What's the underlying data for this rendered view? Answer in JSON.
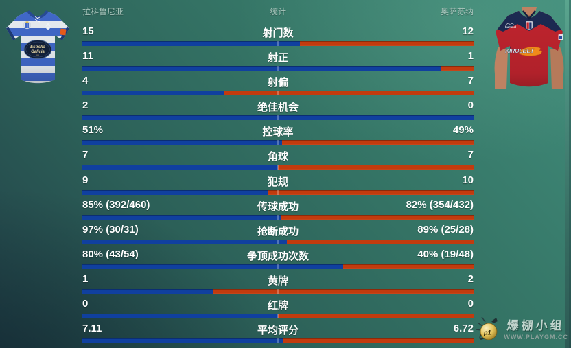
{
  "colors": {
    "home_bar": "#10409f",
    "away_bar": "#c23b0e",
    "home_kit_blue": "#4068c8",
    "away_kit_red": "#c0242e",
    "away_kit_navy": "#1c2a52",
    "background_top_right": "#418d7b",
    "background_bottom_left": "#213f47",
    "header_text": "#a9c6bd"
  },
  "header": {
    "home_team": "拉科鲁尼亚",
    "title": "统计",
    "away_team": "奥萨苏纳"
  },
  "stats": {
    "rows": [
      {
        "label": "射门数",
        "home": "15",
        "away": "12",
        "home_pct": 55.6
      },
      {
        "label": "射正",
        "home": "11",
        "away": "1",
        "home_pct": 91.7
      },
      {
        "label": "射偏",
        "home": "4",
        "away": "7",
        "home_pct": 36.4
      },
      {
        "label": "绝佳机会",
        "home": "2",
        "away": "0",
        "home_pct": 100
      },
      {
        "label": "控球率",
        "home": "51%",
        "away": "49%",
        "home_pct": 51
      },
      {
        "label": "角球",
        "home": "7",
        "away": "7",
        "home_pct": 50
      },
      {
        "label": "犯规",
        "home": "9",
        "away": "10",
        "home_pct": 47.4
      },
      {
        "label": "传球成功",
        "home": "85% (392/460)",
        "away": "82% (354/432)",
        "home_pct": 50.9
      },
      {
        "label": "抢断成功",
        "home": "97% (30/31)",
        "away": "89% (25/28)",
        "home_pct": 52.2
      },
      {
        "label": "争顶成功次数",
        "home": "80% (43/54)",
        "away": "40% (19/48)",
        "home_pct": 66.7
      },
      {
        "label": "黄牌",
        "home": "1",
        "away": "2",
        "home_pct": 33.3
      },
      {
        "label": "红牌",
        "home": "0",
        "away": "0",
        "home_pct": 50
      },
      {
        "label": "平均评分",
        "home": "7.11",
        "away": "6.72",
        "home_pct": 51.4
      }
    ]
  },
  "kits": {
    "home": {
      "team": "拉科鲁尼亚",
      "sponsor_line1": "Estrella",
      "sponsor_line2": "Galicia",
      "sponsor_line3": "00"
    },
    "away": {
      "team": "奥萨苏纳",
      "sponsor": "KIROLBET",
      "brand": "hummel"
    }
  },
  "watermark": {
    "icon_text": "p1",
    "group_name": "爆棚小组",
    "site_url": "WWW.PLAYGM.CC"
  }
}
